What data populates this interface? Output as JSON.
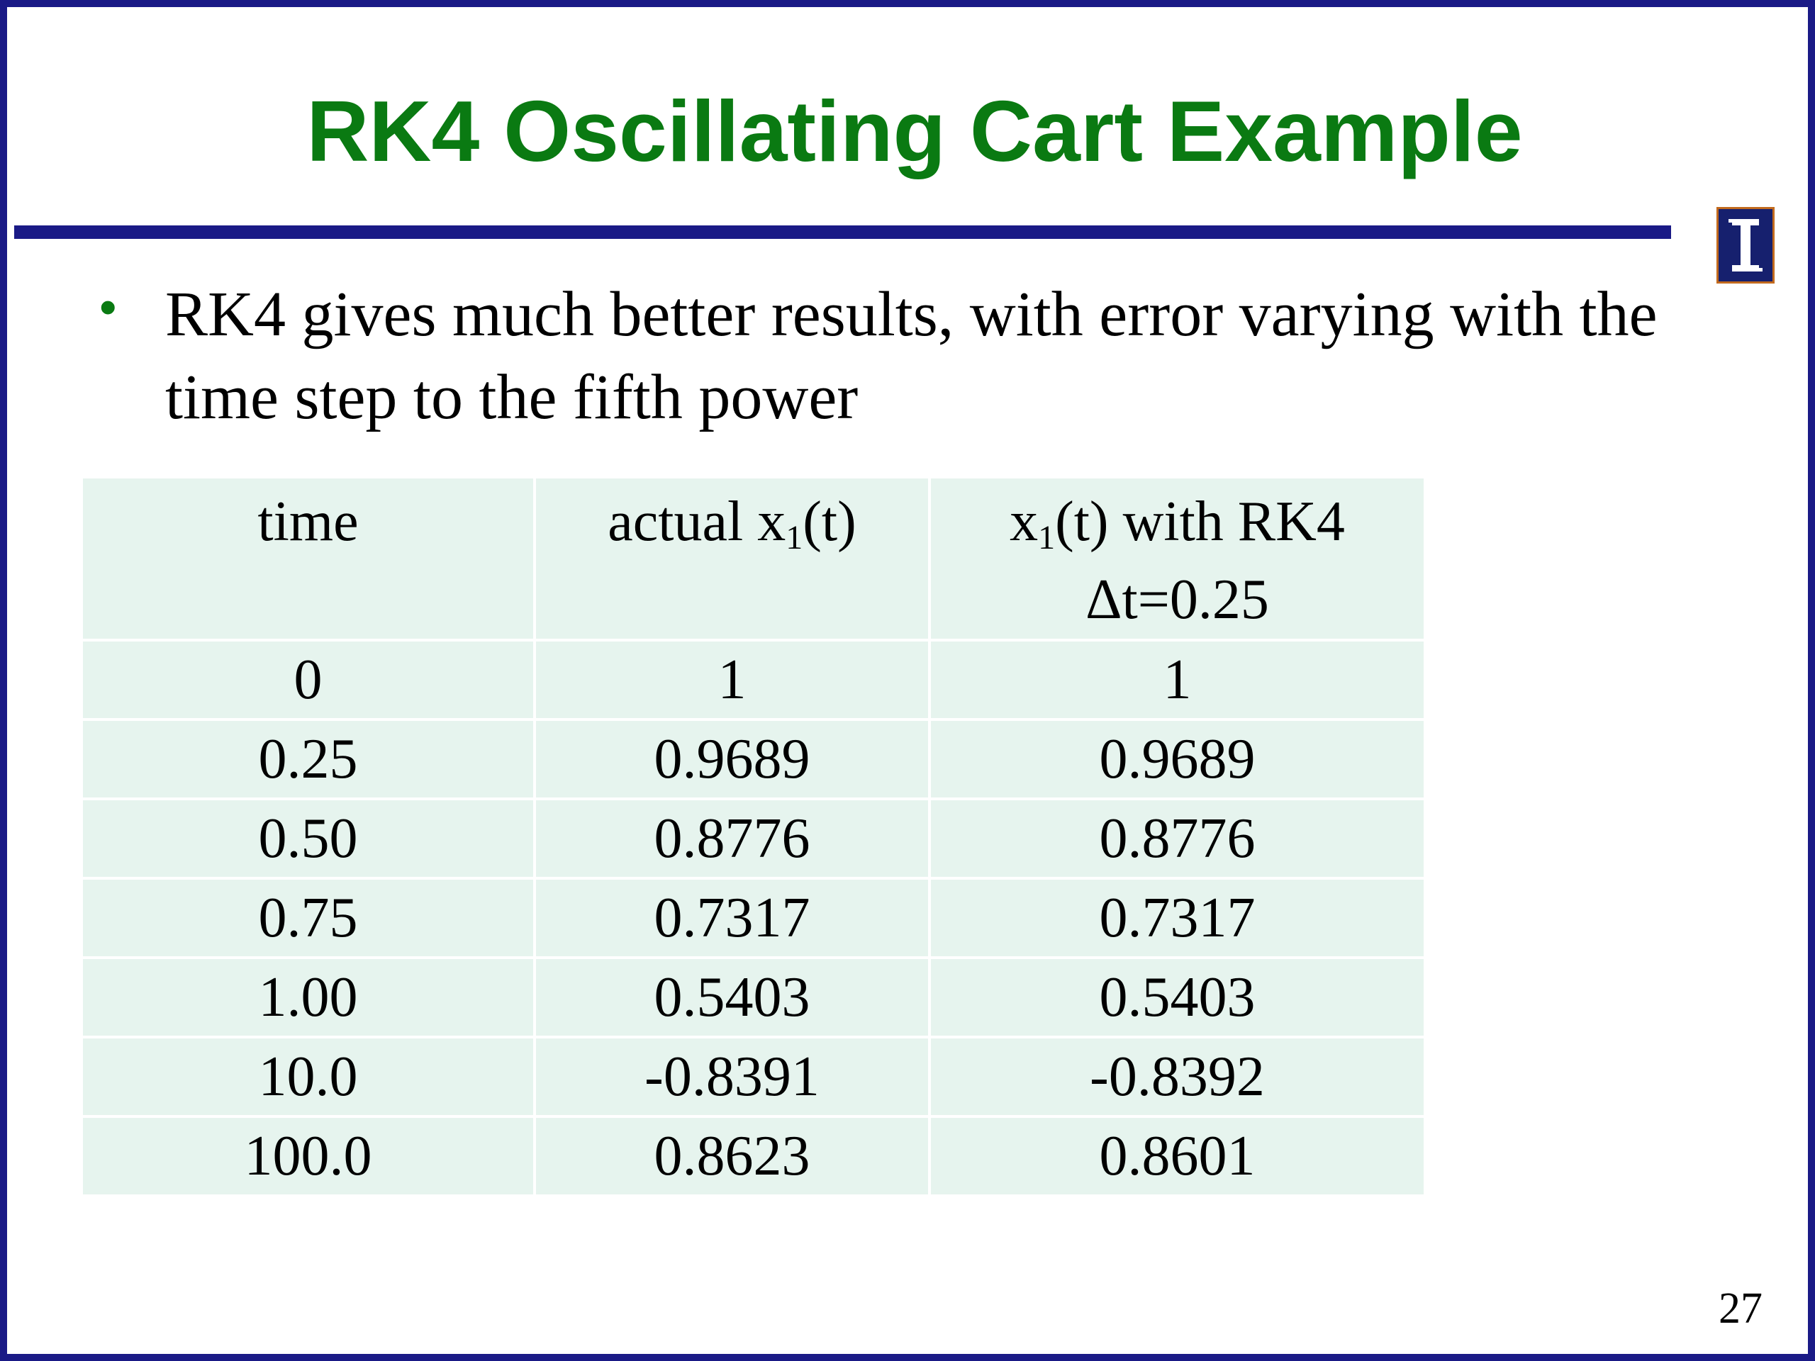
{
  "slide": {
    "title": "RK4 Oscillating Cart Example",
    "bullet_marker": "•",
    "bullet_text": "RK4 gives much better results, with error varying with the time step to the fifth power",
    "page_number": "27",
    "logo_letter": "I"
  },
  "table": {
    "headers": [
      {
        "text": "time"
      },
      {
        "prefix": "actual x",
        "subscript": "1",
        "suffix": "(t)"
      },
      {
        "prefix": "x",
        "subscript": "1",
        "suffix": "(t) with RK4",
        "line2": "Δt=0.25"
      }
    ],
    "rows": [
      [
        "0",
        "1",
        "1"
      ],
      [
        "0.25",
        "0.9689",
        "0.9689"
      ],
      [
        "0.50",
        "0.8776",
        "0.8776"
      ],
      [
        "0.75",
        "0.7317",
        "0.7317"
      ],
      [
        "1.00",
        "0.5403",
        "0.5403"
      ],
      [
        "10.0",
        "-0.8391",
        "-0.8392"
      ],
      [
        "100.0",
        "0.8623",
        "0.8601"
      ]
    ]
  },
  "colors": {
    "border": "#1a1a86",
    "title": "#0a7a12",
    "table_cell": "#e6f4ee",
    "logo_bg": "#16206e",
    "logo_border": "#c26a1e"
  }
}
